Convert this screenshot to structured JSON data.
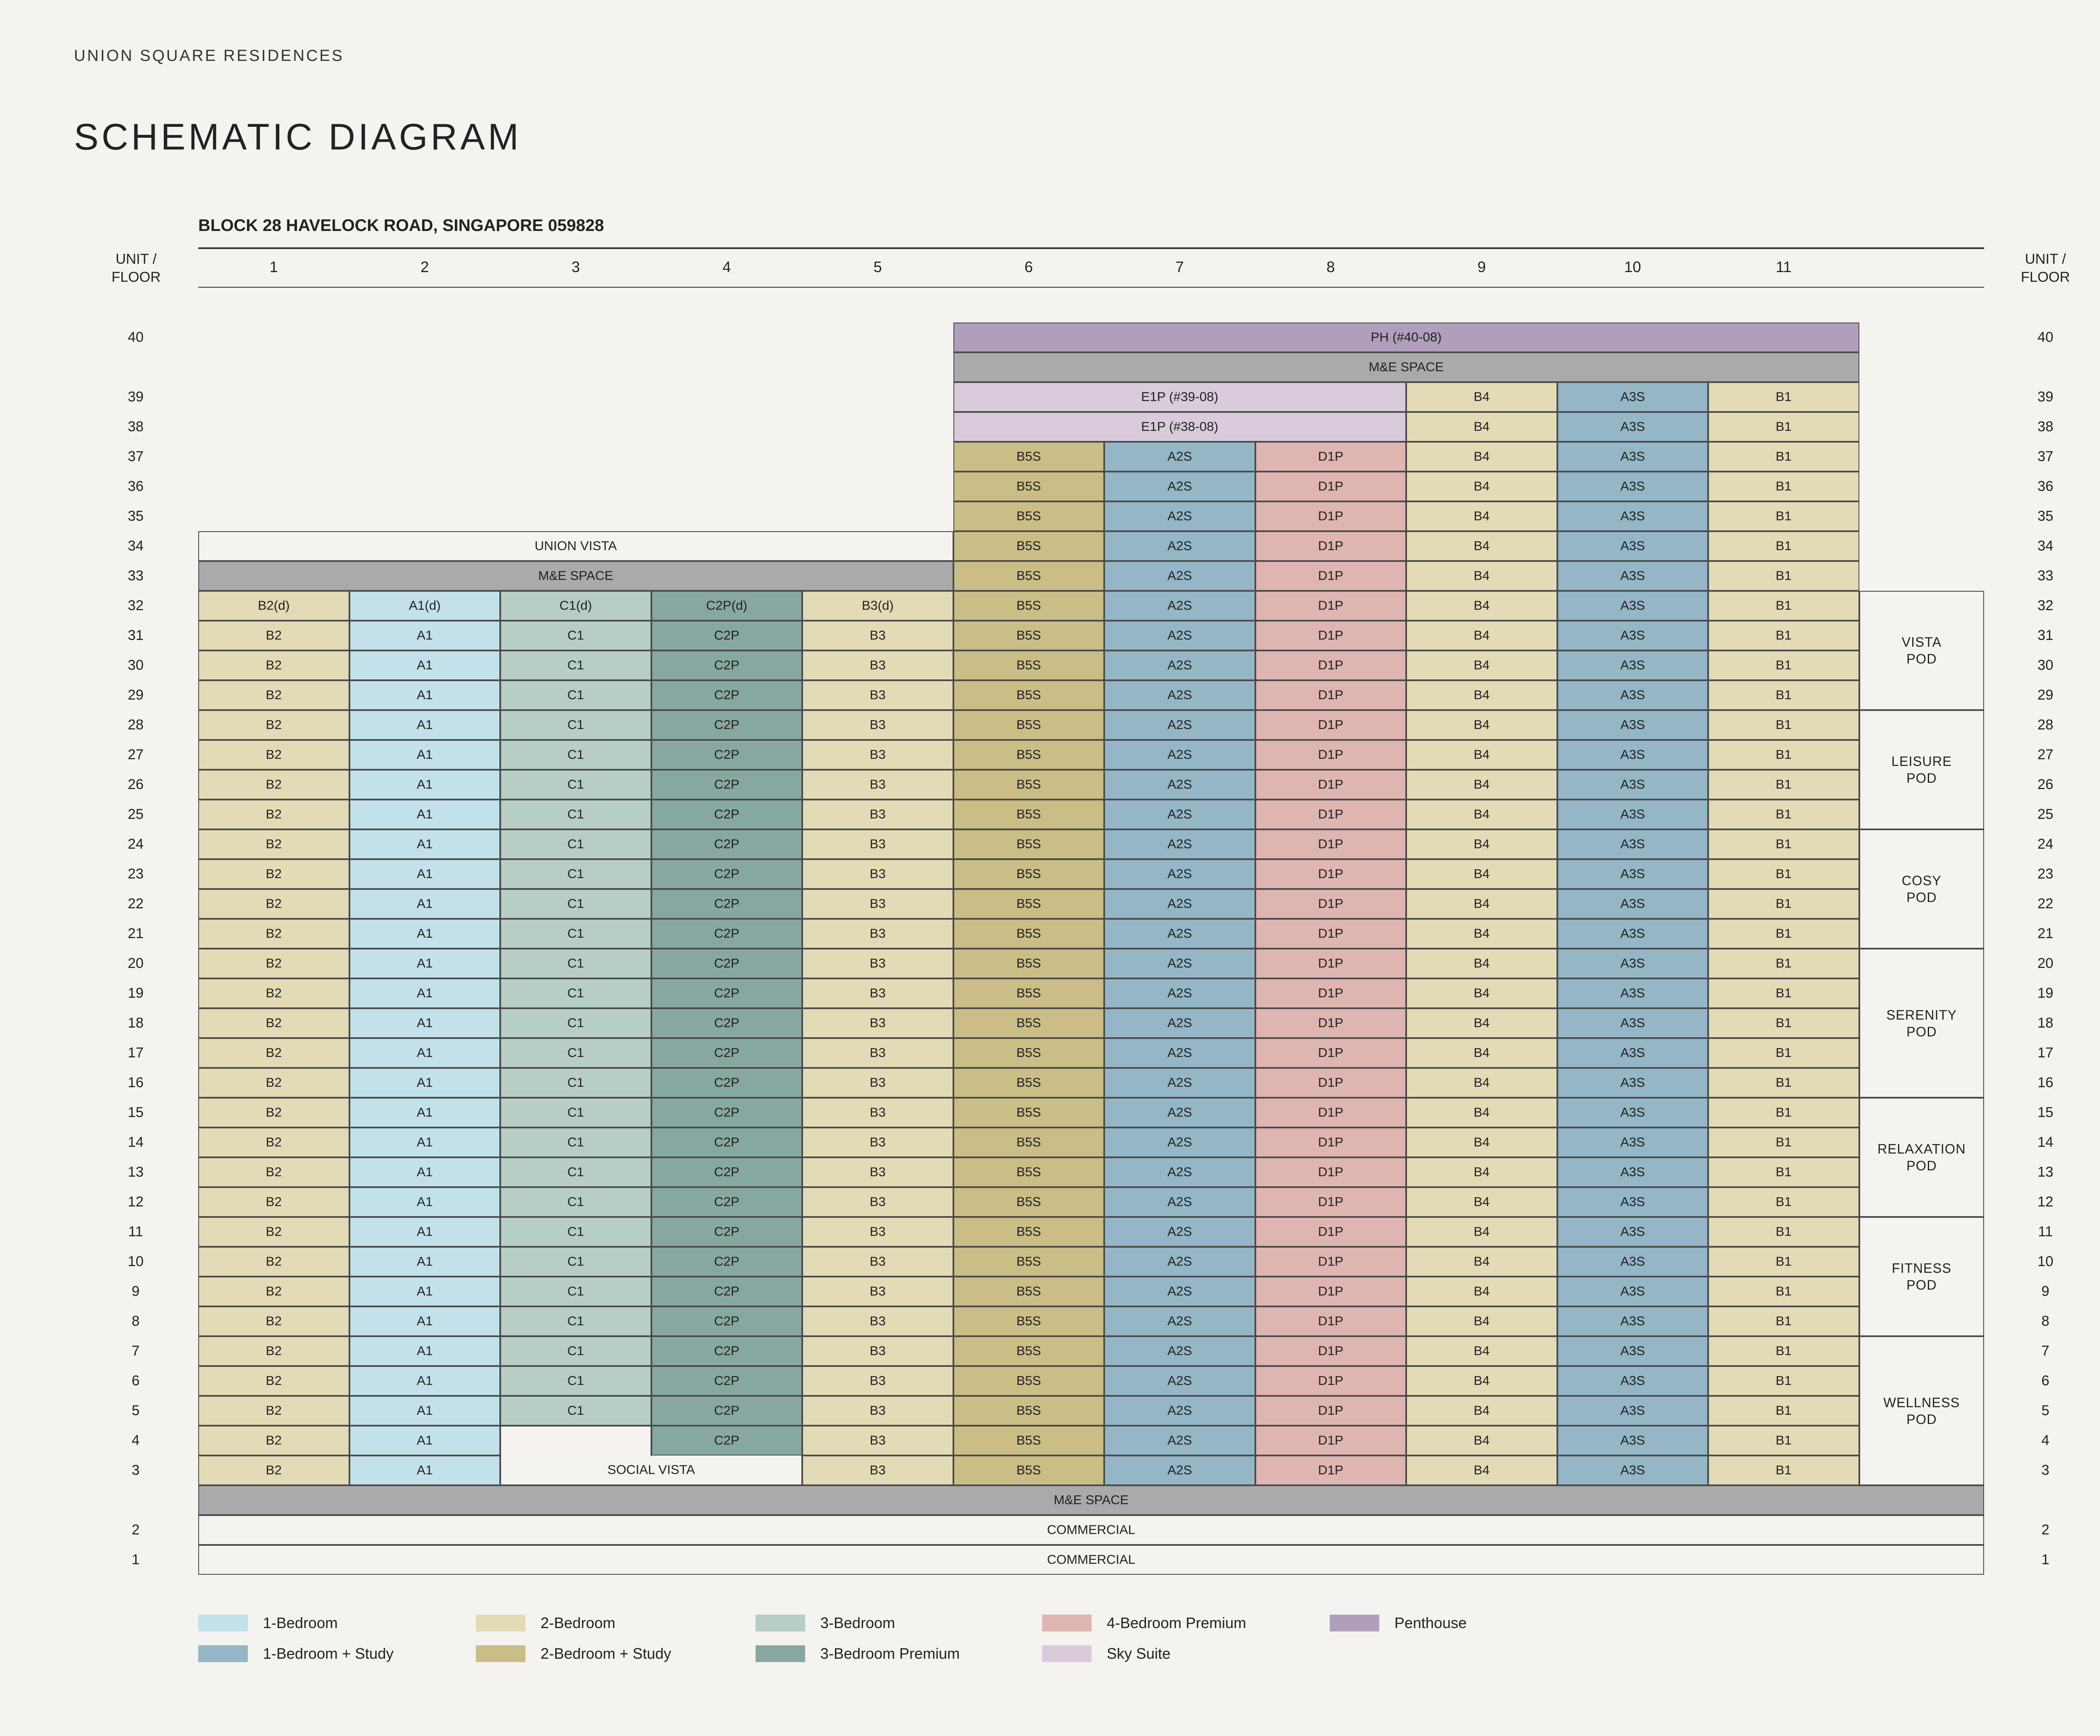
{
  "brand": "UNION SQUARE RESIDENCES",
  "title": "SCHEMATIC DIAGRAM",
  "block_address": "BLOCK 28 HAVELOCK ROAD, SINGAPORE 059828",
  "header": {
    "unit_floor_label": "UNIT /\nFLOOR"
  },
  "columns": [
    "1",
    "2",
    "3",
    "4",
    "5",
    "6",
    "7",
    "8",
    "9",
    "10",
    "11"
  ],
  "floors": [
    "40",
    "39",
    "38",
    "37",
    "36",
    "35",
    "34",
    "33",
    "32",
    "31",
    "30",
    "29",
    "28",
    "27",
    "26",
    "25",
    "24",
    "23",
    "22",
    "21",
    "20",
    "19",
    "18",
    "17",
    "16",
    "15",
    "14",
    "13",
    "12",
    "11",
    "10",
    "9",
    "8",
    "7",
    "6",
    "5",
    "4",
    "3",
    "2",
    "1"
  ],
  "colors": {
    "one_bed": "#c2e1ea",
    "one_bed_study": "#94b6c6",
    "two_bed": "#e3dab6",
    "two_bed_study": "#cabd86",
    "three_bed": "#b6cec6",
    "three_bed_premium": "#87a8a0",
    "four_bed_premium": "#deb5b0",
    "sky_suite": "#d9cbdc",
    "penthouse": "#b09fbc",
    "me_space": "#aaaaaa",
    "blank": "#f4f3ef"
  },
  "special": {
    "ph": "PH (#40-08)",
    "me_space": "M&E SPACE",
    "e1p_39": "E1P (#39-08)",
    "e1p_38": "E1P (#38-08)",
    "union_vista": "UNION VISTA",
    "social_vista": "SOCIAL VISTA",
    "commercial": "COMMERCIAL"
  },
  "units": {
    "c1": "B2",
    "c1_32": "B2(d)",
    "c2": "A1",
    "c2_32": "A1(d)",
    "c3": "C1",
    "c3_32": "C1(d)",
    "c4": "C2P",
    "c4_32": "C2P(d)",
    "c5": "B3",
    "c5_32": "B3(d)",
    "c6": "B5S",
    "c7": "A2S",
    "c8": "D1P",
    "c9": "B4",
    "c10": "A3S",
    "c11": "B1"
  },
  "pods": [
    "VISTA\nPOD",
    "LEISURE\nPOD",
    "COSY\nPOD",
    "SERENITY\nPOD",
    "RELAXATION\nPOD",
    "FITNESS\nPOD",
    "WELLNESS\nPOD"
  ],
  "legend": [
    {
      "label": "1-Bedroom",
      "color": "#c2e1ea"
    },
    {
      "label": "1-Bedroom + Study",
      "color": "#94b6c6"
    },
    {
      "label": "2-Bedroom",
      "color": "#e3dab6"
    },
    {
      "label": "2-Bedroom + Study",
      "color": "#cabd86"
    },
    {
      "label": "3-Bedroom",
      "color": "#b6cec6"
    },
    {
      "label": "3-Bedroom Premium",
      "color": "#87a8a0"
    },
    {
      "label": "4-Bedroom Premium",
      "color": "#deb5b0"
    },
    {
      "label": "Sky Suite",
      "color": "#d9cbdc"
    },
    {
      "label": "Penthouse",
      "color": "#b09fbc"
    }
  ]
}
